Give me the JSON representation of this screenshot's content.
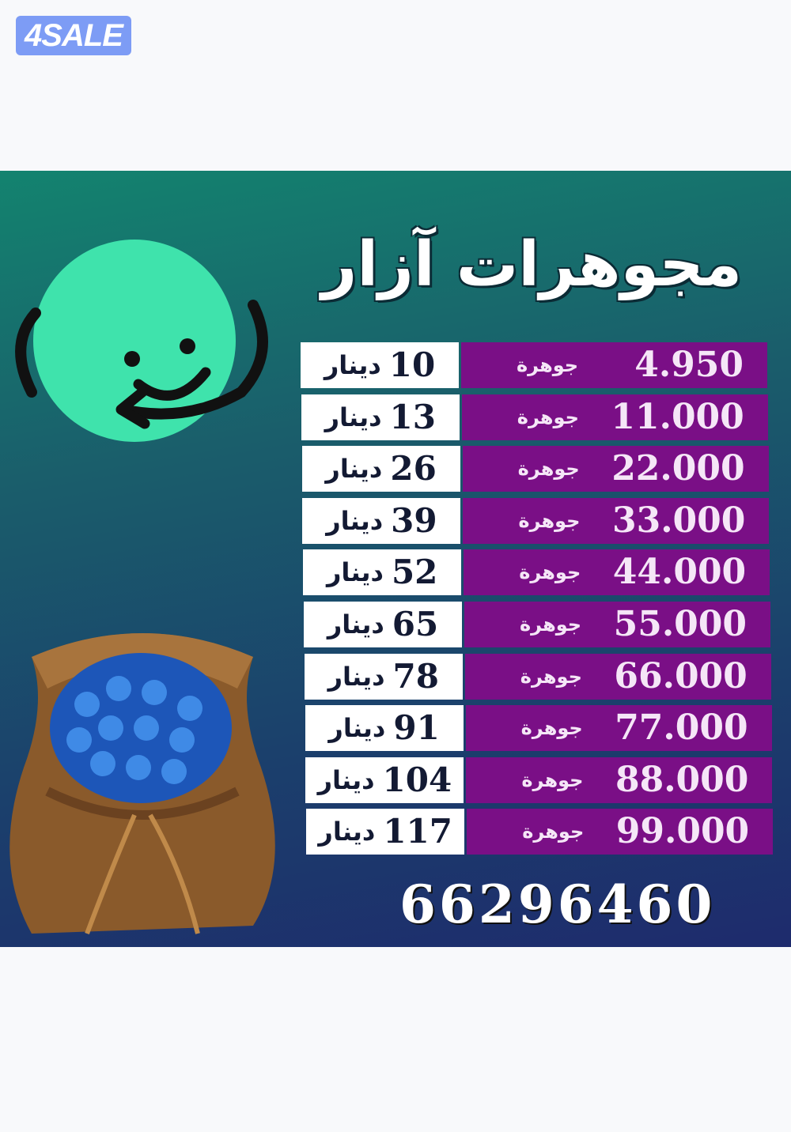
{
  "watermark": {
    "text": "4SALE",
    "color": "#7d9cf5"
  },
  "poster": {
    "title": "مجوهرات آزار",
    "brand_icon": "smiley-globe-arrow-icon",
    "image": "sack-of-blue-gems",
    "accent_colors": {
      "purple": "#7a0f86",
      "mint": "#3fe3ac",
      "teal": "#13836f",
      "navy": "#1e2b6d"
    },
    "currency_label": "دينار",
    "unit_label": "جوهرة",
    "rows": [
      {
        "gems": "4.950",
        "price": "10"
      },
      {
        "gems": "11.000",
        "price": "13"
      },
      {
        "gems": "22.000",
        "price": "26"
      },
      {
        "gems": "33.000",
        "price": "39"
      },
      {
        "gems": "44.000",
        "price": "52"
      },
      {
        "gems": "55.000",
        "price": "65"
      },
      {
        "gems": "66.000",
        "price": "78"
      },
      {
        "gems": "77.000",
        "price": "91"
      },
      {
        "gems": "88.000",
        "price": "104"
      },
      {
        "gems": "99.000",
        "price": "117"
      }
    ],
    "phone": "66296460"
  }
}
